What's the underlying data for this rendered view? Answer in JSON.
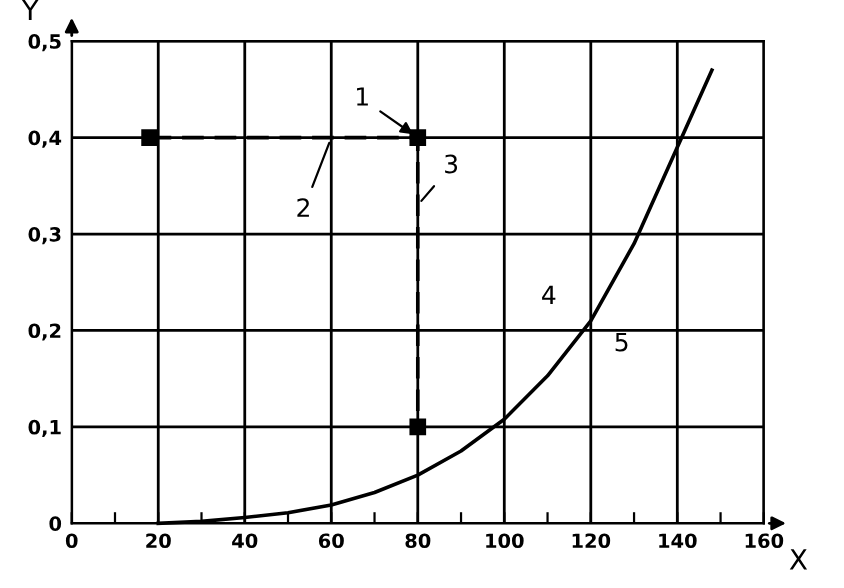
{
  "chart_data": {
    "type": "line",
    "xlabel": "X",
    "ylabel": "Y",
    "xlim": [
      0,
      160
    ],
    "ylim": [
      0,
      0.5
    ],
    "xticks": [
      0,
      {
        "value": 10,
        "label": null
      },
      20,
      {
        "value": 30,
        "label": null
      },
      40,
      {
        "value": 50,
        "label": null
      },
      60,
      {
        "value": 70,
        "label": null
      },
      80,
      {
        "value": 90,
        "label": null
      },
      100,
      {
        "value": 110,
        "label": null
      },
      120,
      {
        "value": 130,
        "label": null
      },
      140,
      {
        "value": 150,
        "label": null
      },
      160
    ],
    "yticks": [
      0,
      {
        "value": 0.1,
        "label": "0,1"
      },
      {
        "value": 0.2,
        "label": "0,2"
      },
      {
        "value": 0.3,
        "label": "0,3"
      },
      {
        "value": 0.4,
        "label": "0,4"
      },
      {
        "value": 0.5,
        "label": "0,5"
      }
    ],
    "grid": true,
    "series": [
      {
        "type": "line",
        "color": "#000000",
        "line_style": "solid",
        "marker": "none",
        "x": [
          20,
          30,
          40,
          50,
          60,
          70,
          80,
          90,
          100,
          110,
          120,
          130,
          140,
          148
        ],
        "values": [
          0,
          0.002,
          0.006,
          0.011,
          0.019,
          0.032,
          0.05,
          0.075,
          0.108,
          0.153,
          0.21,
          0.29,
          0.39,
          0.47
        ]
      },
      {
        "type": "line",
        "color": "#000000",
        "line_style": "dashed",
        "marker": "square",
        "x": [
          18,
          80,
          80
        ],
        "values": [
          0.4,
          0.4,
          0.1
        ]
      }
    ],
    "annotations": [
      {
        "text": "1",
        "x": 80,
        "y": 0.4
      },
      {
        "text": "2",
        "x": 60,
        "y": 0.4
      },
      {
        "text": "3",
        "x": 80,
        "y": 0.33
      },
      {
        "text": "4",
        "x": 118,
        "y": 0.2
      },
      {
        "text": "5",
        "x": 122,
        "y": 0.226
      }
    ]
  }
}
